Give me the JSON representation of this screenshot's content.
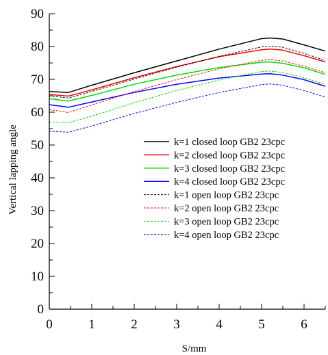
{
  "chart_data": {
    "type": "line",
    "xlabel": "S/mm",
    "ylabel": "Vertical lapping angle",
    "xlim": [
      0,
      6.5
    ],
    "ylim": [
      0,
      90
    ],
    "xticks": [
      0,
      1,
      2,
      3,
      4,
      5,
      6
    ],
    "yticks": [
      0,
      10,
      20,
      30,
      40,
      50,
      60,
      70,
      80,
      90
    ],
    "grid": false,
    "legend_position": "right",
    "series": [
      {
        "name": "k=1 closed loop GB2 23cpc",
        "color": "#000000",
        "dashed": false,
        "x": [
          0,
          0.45,
          1,
          2,
          3,
          4,
          5,
          5.2,
          5.5,
          6,
          6.5
        ],
        "y": [
          66.3,
          66.0,
          68.2,
          72.0,
          75.6,
          79.2,
          82.4,
          82.6,
          82.3,
          80.5,
          78.6
        ]
      },
      {
        "name": "k=2 closed loop GB2 23cpc",
        "color": "#ff0000",
        "dashed": false,
        "x": [
          0,
          0.45,
          1,
          2,
          3,
          4,
          5,
          5.2,
          5.5,
          6,
          6.5
        ],
        "y": [
          65.4,
          64.9,
          66.8,
          70.5,
          73.9,
          76.9,
          79.0,
          79.2,
          78.9,
          77.2,
          75.3
        ]
      },
      {
        "name": "k=3 closed loop GB2 23cpc",
        "color": "#00dd00",
        "dashed": false,
        "x": [
          0,
          0.45,
          1,
          2,
          3,
          4,
          5,
          5.2,
          5.5,
          6,
          6.5
        ],
        "y": [
          64.1,
          63.4,
          65.1,
          68.5,
          71.3,
          73.6,
          75.2,
          75.3,
          74.9,
          73.5,
          71.5
        ]
      },
      {
        "name": "k=4 closed loop GB2 23cpc",
        "color": "#0000ff",
        "dashed": false,
        "x": [
          0,
          0.45,
          1,
          2,
          3,
          4,
          5,
          5.2,
          5.5,
          6,
          6.5
        ],
        "y": [
          62.3,
          61.5,
          63.1,
          66.0,
          68.5,
          70.4,
          71.6,
          71.7,
          71.3,
          69.9,
          67.9
        ]
      },
      {
        "name": "k=1 open loop GB2 23cpc",
        "color": "#000000",
        "dashed": true,
        "x": [
          0,
          0.45,
          1,
          2,
          3,
          4,
          5,
          5.2,
          5.5,
          6,
          6.5
        ],
        "y": [
          65.0,
          64.3,
          66.3,
          70.1,
          73.7,
          77.0,
          79.9,
          80.1,
          79.8,
          77.9,
          75.8
        ]
      },
      {
        "name": "k=2 open loop GB2 23cpc",
        "color": "#ff0000",
        "dashed": true,
        "x": [
          0,
          0.45,
          1,
          2,
          3,
          4,
          5,
          5.2,
          5.5,
          6,
          6.5
        ],
        "y": [
          60.8,
          59.9,
          62.2,
          66.3,
          69.9,
          73.2,
          75.8,
          76.0,
          75.6,
          74.0,
          72.0
        ]
      },
      {
        "name": "k=3 open loop GB2 23cpc",
        "color": "#00dd00",
        "dashed": true,
        "x": [
          0,
          0.45,
          1,
          2,
          3,
          4,
          5,
          5.2,
          5.5,
          6,
          6.5
        ],
        "y": [
          57.0,
          56.8,
          58.8,
          62.9,
          66.6,
          69.8,
          72.4,
          72.5,
          72.1,
          70.5,
          68.5
        ]
      },
      {
        "name": "k=4 open loop GB2 23cpc",
        "color": "#0000ff",
        "dashed": true,
        "x": [
          0,
          0.45,
          1,
          2,
          3,
          4,
          5,
          5.2,
          5.5,
          6,
          6.5
        ],
        "y": [
          54.2,
          53.9,
          55.8,
          59.6,
          63.0,
          66.0,
          68.4,
          68.6,
          68.2,
          66.6,
          64.6
        ]
      }
    ]
  }
}
